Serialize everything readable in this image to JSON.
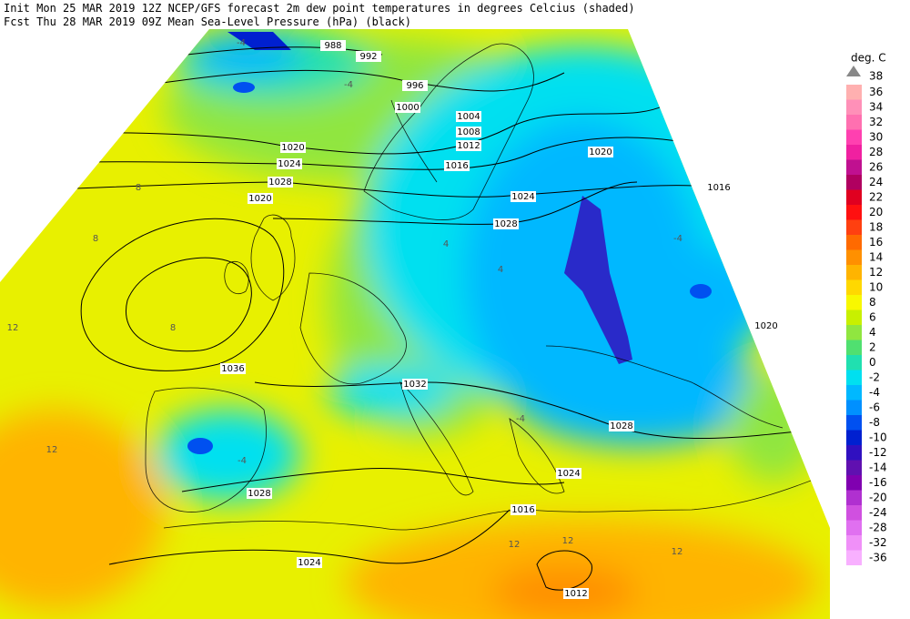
{
  "header": {
    "line1": "Init  Mon 25 MAR 2019 12Z  NCEP/GFS forecast 2m dew point temperatures in degrees Celcius (shaded)",
    "line2": "Fcst Thu 28 MAR 2019 09Z  Mean Sea-Level Pressure (hPa) (black)"
  },
  "legend": {
    "title": "deg. C",
    "top_label": "38",
    "items": [
      {
        "label": "36",
        "color": "#ffb0b0"
      },
      {
        "label": "34",
        "color": "#ff90b8"
      },
      {
        "label": "32",
        "color": "#ff70b0"
      },
      {
        "label": "30",
        "color": "#ff40b0"
      },
      {
        "label": "28",
        "color": "#f020a0"
      },
      {
        "label": "26",
        "color": "#c01090"
      },
      {
        "label": "24",
        "color": "#b00060"
      },
      {
        "label": "22",
        "color": "#e00020"
      },
      {
        "label": "20",
        "color": "#ff1010"
      },
      {
        "label": "18",
        "color": "#ff4010"
      },
      {
        "label": "16",
        "color": "#ff6a00"
      },
      {
        "label": "14",
        "color": "#ff9000"
      },
      {
        "label": "12",
        "color": "#ffb400"
      },
      {
        "label": "10",
        "color": "#ffd800"
      },
      {
        "label": "8",
        "color": "#f8f800"
      },
      {
        "label": "6",
        "color": "#c8f000"
      },
      {
        "label": "4",
        "color": "#90e640"
      },
      {
        "label": "2",
        "color": "#50e070"
      },
      {
        "label": "0",
        "color": "#20e0b0"
      },
      {
        "label": "-2",
        "color": "#00e0f0"
      },
      {
        "label": "-4",
        "color": "#00b8ff"
      },
      {
        "label": "-6",
        "color": "#0090ff"
      },
      {
        "label": "-8",
        "color": "#0050f0"
      },
      {
        "label": "-10",
        "color": "#0020d0"
      },
      {
        "label": "-12",
        "color": "#3010c0"
      },
      {
        "label": "-14",
        "color": "#6010b0"
      },
      {
        "label": "-16",
        "color": "#8000b0"
      },
      {
        "label": "-20",
        "color": "#b030d0"
      },
      {
        "label": "-24",
        "color": "#d050e0"
      },
      {
        "label": "-28",
        "color": "#e070f0"
      },
      {
        "label": "-32",
        "color": "#f090f8"
      },
      {
        "label": "-36",
        "color": "#f8b0ff"
      }
    ]
  },
  "isobars": [
    "988",
    "992",
    "996",
    "1000",
    "1004",
    "1008",
    "1012",
    "1016",
    "1020",
    "1024",
    "1028",
    "1024",
    "1020",
    "1016",
    "1020",
    "1020",
    "1036",
    "1032",
    "1028",
    "1028",
    "1024",
    "1016",
    "1024",
    "1012",
    "1028"
  ],
  "dewpoint_labels": [
    "-4",
    "-4",
    "8",
    "8",
    "12",
    "12",
    "12",
    "4",
    "-4",
    "-4",
    "4",
    "8",
    "12",
    "12",
    "-4"
  ]
}
